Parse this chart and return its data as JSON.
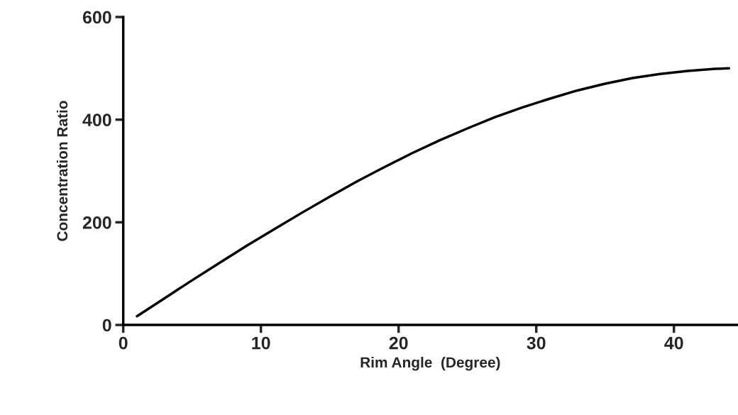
{
  "chart_data": {
    "type": "line",
    "xlabel": "Rim Angle  (Degree)",
    "ylabel": "Concentration Ratio",
    "x": [
      1,
      3,
      5,
      7,
      9,
      11,
      13,
      15,
      17,
      19,
      21,
      23,
      25,
      27,
      29,
      31,
      33,
      35,
      37,
      39,
      41,
      43,
      44
    ],
    "series": [
      {
        "color": "#000000",
        "values": [
          17,
          52,
          87,
          121,
          155,
          187,
          219,
          250,
          280,
          308,
          335,
          360,
          383,
          405,
          424,
          441,
          457,
          470,
          481,
          489,
          495,
          499,
          500
        ]
      }
    ],
    "xlim": [
      0,
      44.6
    ],
    "xticks": [
      0,
      10,
      20,
      30,
      40
    ],
    "ylim": [
      0,
      600
    ],
    "yticks": [
      0,
      200,
      400,
      600
    ],
    "grid": false,
    "legend": false,
    "marker": "none",
    "line_style": "solid"
  }
}
